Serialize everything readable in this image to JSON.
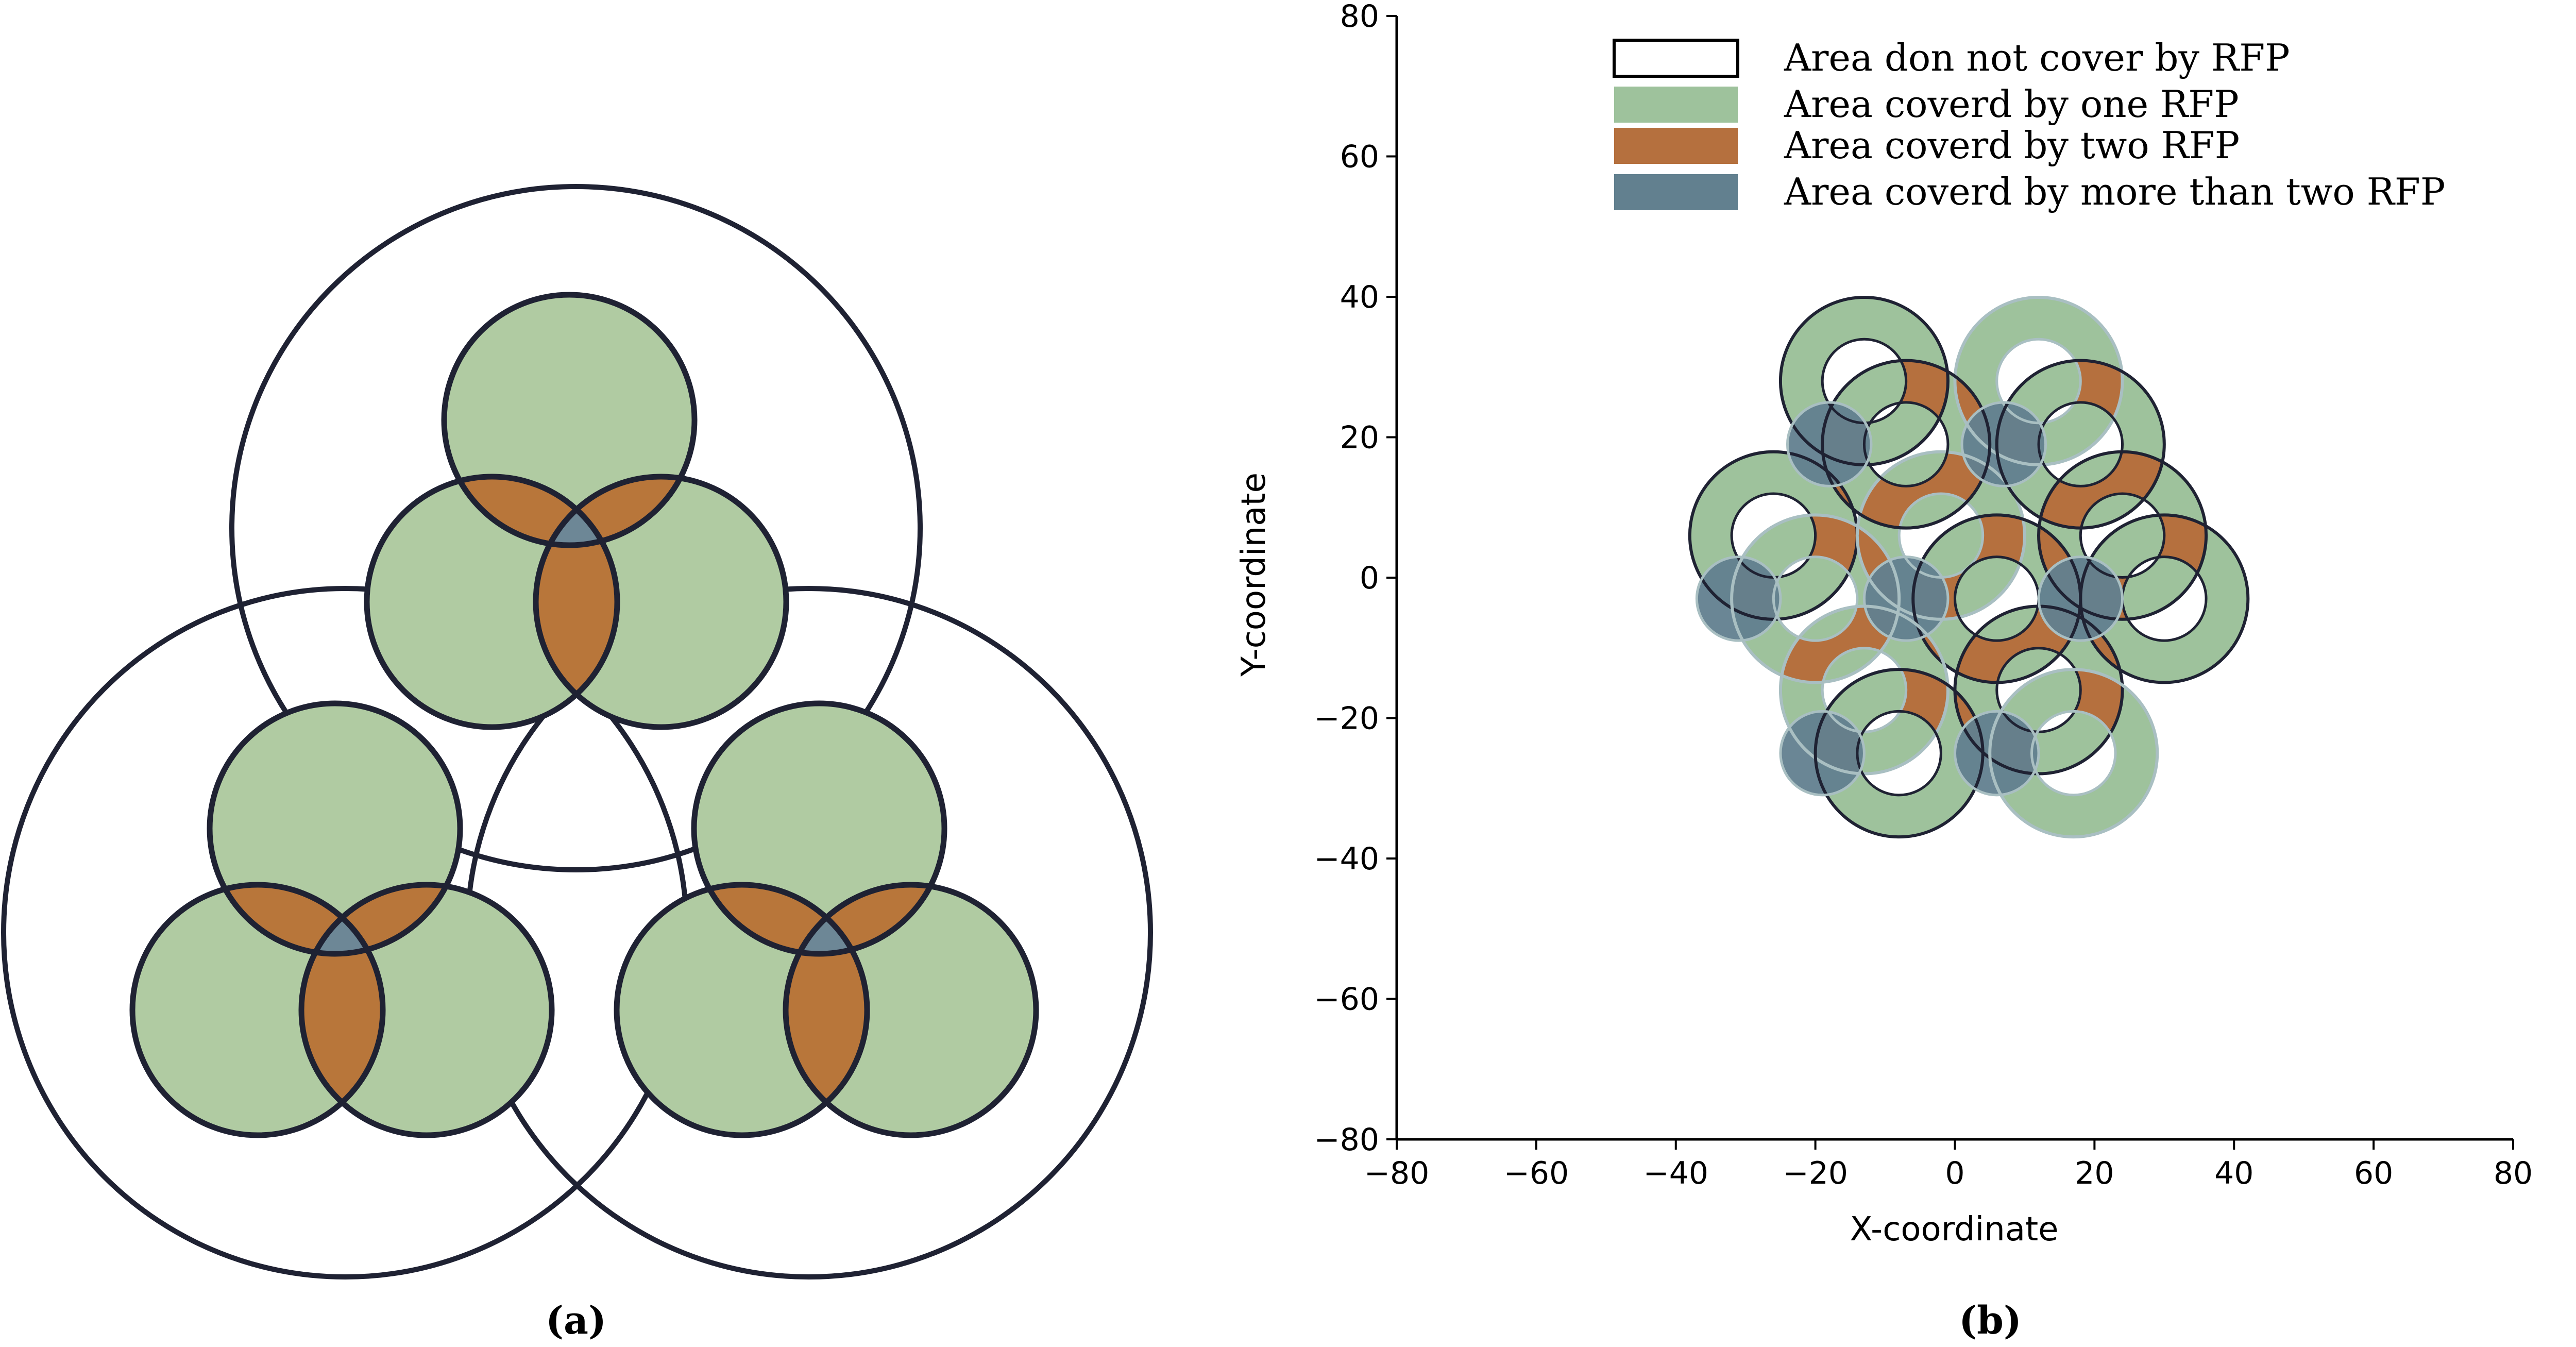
{
  "colors": {
    "green": "#b0cba2",
    "green_b": "#9ec29c",
    "orange": "#b8763a",
    "orange_b": "#b5703e",
    "slate": "#6d8796",
    "slate_b": "#62808f",
    "ring_pale": "#a9bfc2",
    "outline": "#1f2233",
    "axis": "#000000"
  },
  "panel_a": {
    "caption": "(a)",
    "outer_regions": [
      {
        "name": "top"
      },
      {
        "name": "bottom-left"
      },
      {
        "name": "bottom-right"
      }
    ],
    "groups": [
      {
        "name": "top"
      },
      {
        "name": "bottom-left"
      },
      {
        "name": "bottom-right"
      }
    ]
  },
  "panel_b": {
    "caption": "(b)",
    "legend": [
      {
        "label": "Area don not cover by RFP",
        "swatch": "empty"
      },
      {
        "label": "Area coverd by one RFP",
        "swatch": "green"
      },
      {
        "label": "Area coverd by two RFP",
        "swatch": "orange"
      },
      {
        "label": "Area coverd by more than two RFP",
        "swatch": "slate"
      }
    ]
  },
  "chart_data": {
    "type": "scatter",
    "xlabel": "X-coordinate",
    "ylabel": "Y-coordinate",
    "xlim": [
      -80,
      80
    ],
    "ylim": [
      -80,
      80
    ],
    "xticks": [
      "−80",
      "−60",
      "−40",
      "−20",
      "0",
      "20",
      "40",
      "60",
      "80"
    ],
    "yticks": [
      "−80",
      "−60",
      "−40",
      "−20",
      "0",
      "20",
      "40",
      "60",
      "80"
    ],
    "grid": false,
    "legend_position": "top",
    "series": [
      {
        "rings": [
          {
            "x": -13,
            "y": 28,
            "r_outer": 12,
            "r_inner": 6
          },
          {
            "x": 12,
            "y": 28,
            "r_outer": 12,
            "r_inner": 6
          },
          {
            "x": -26,
            "y": 6,
            "r_outer": 12,
            "r_inner": 6
          },
          {
            "x": 24,
            "y": 6,
            "r_outer": 12,
            "r_inner": 6
          },
          {
            "x": -2,
            "y": 6,
            "r_outer": 12,
            "r_inner": 6
          },
          {
            "x": -7,
            "y": 19,
            "r_outer": 12,
            "r_inner": 6
          },
          {
            "x": 18,
            "y": 19,
            "r_outer": 12,
            "r_inner": 6
          },
          {
            "x": -20,
            "y": -3,
            "r_outer": 12,
            "r_inner": 6
          },
          {
            "x": 30,
            "y": -3,
            "r_outer": 12,
            "r_inner": 6
          },
          {
            "x": 6,
            "y": -3,
            "r_outer": 12,
            "r_inner": 6
          },
          {
            "x": -13,
            "y": -16,
            "r_outer": 12,
            "r_inner": 6
          },
          {
            "x": 12,
            "y": -16,
            "r_outer": 12,
            "r_inner": 6
          },
          {
            "x": -8,
            "y": -25,
            "r_outer": 12,
            "r_inner": 6
          },
          {
            "x": 17,
            "y": -25,
            "r_outer": 12,
            "r_inner": 6
          }
        ]
      },
      {
        "small_disks": [
          {
            "x": -18,
            "y": 19,
            "r": 6
          },
          {
            "x": 7,
            "y": 19,
            "r": 6
          },
          {
            "x": -31,
            "y": -3,
            "r": 6
          },
          {
            "x": -7,
            "y": -3,
            "r": 6
          },
          {
            "x": 18,
            "y": -3,
            "r": 6
          },
          {
            "x": -19,
            "y": -25,
            "r": 6
          },
          {
            "x": 6,
            "y": -25,
            "r": 6
          }
        ]
      }
    ]
  }
}
